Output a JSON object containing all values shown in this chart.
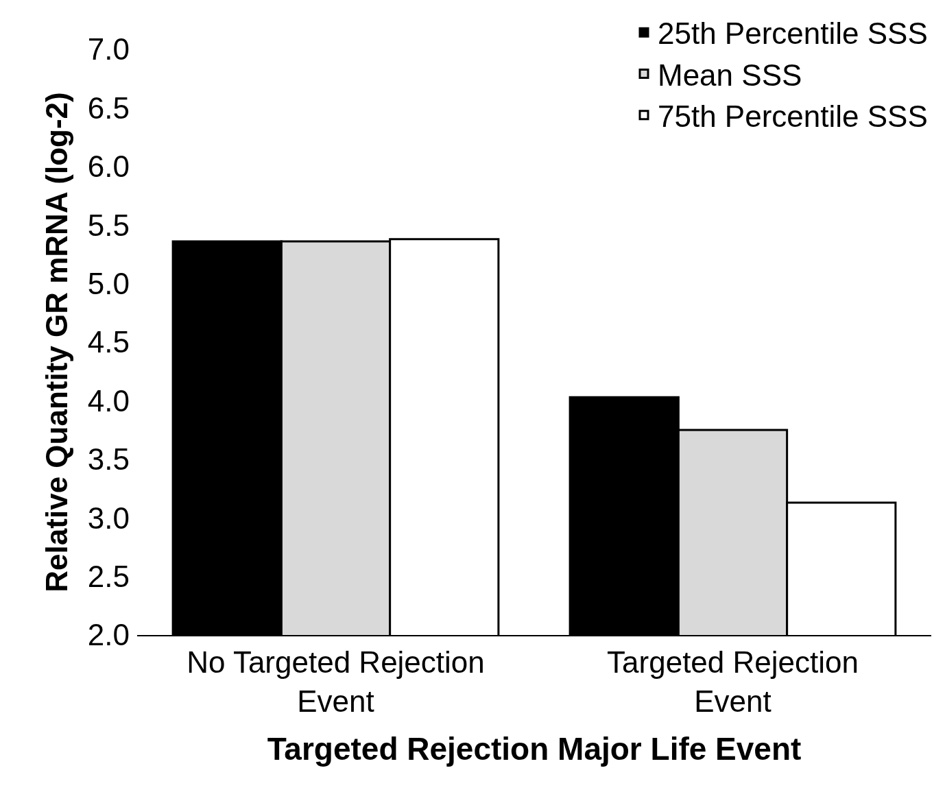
{
  "chart_data": {
    "type": "bar",
    "xlabel": "Targeted Rejection Major Life Event",
    "ylabel": "Relative Quantity GR mRNA (log-2)",
    "categories": [
      "No Targeted Rejection Event",
      "Targeted Rejection Event"
    ],
    "series": [
      {
        "name": "25th Percentile SSS",
        "color": "#000000",
        "values": [
          5.36,
          4.03
        ]
      },
      {
        "name": "Mean SSS",
        "color": "#d9d9d9",
        "values": [
          5.36,
          3.75
        ]
      },
      {
        "name": "75th Percentile SSS",
        "color": "#ffffff",
        "values": [
          5.38,
          3.13
        ]
      }
    ],
    "ylim": [
      2.0,
      7.0
    ],
    "yticks": [
      {
        "value": 2,
        "label": "2.0"
      },
      {
        "value": 2.5,
        "label": "2.5"
      },
      {
        "value": 3,
        "label": "3.0"
      },
      {
        "value": 3.5,
        "label": "3.5"
      },
      {
        "value": 4,
        "label": "4.0"
      },
      {
        "value": 4.5,
        "label": "4.5"
      },
      {
        "value": 5,
        "label": "5.0"
      },
      {
        "value": 5.5,
        "label": "5.5"
      },
      {
        "value": 6,
        "label": "6.0"
      },
      {
        "value": 6.5,
        "label": "6.5"
      },
      {
        "value": 7,
        "label": "7.0"
      }
    ],
    "grid": false,
    "legend": "top right"
  }
}
